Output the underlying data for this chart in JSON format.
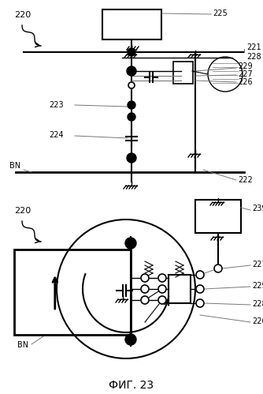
{
  "bg_color": "#ffffff",
  "line_color": "#000000",
  "gray_color": "#777777",
  "fig_width": 3.34,
  "fig_height": 4.99,
  "dpi": 100,
  "caption": "ФИГ. 23",
  "caption_fontsize": 10
}
